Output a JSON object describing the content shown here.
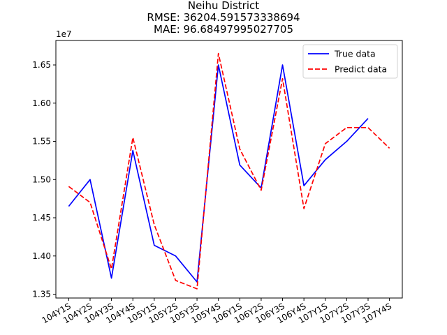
{
  "chart_data": {
    "type": "line",
    "title_lines": [
      "Neihu District",
      "RMSE: 36204.591573338694",
      "MAE: 96.68497995027705"
    ],
    "y_offset_label": "1e7",
    "categories": [
      "104Y1S",
      "104Y2S",
      "104Y3S",
      "104Y4S",
      "105Y1S",
      "105Y2S",
      "105Y3S",
      "105Y4S",
      "106Y1S",
      "106Y2S",
      "106Y3S",
      "106Y4S",
      "107Y1S",
      "107Y2S",
      "107Y3S",
      "107Y4S"
    ],
    "yticks": [
      1.35,
      1.4,
      1.45,
      1.5,
      1.55,
      1.6,
      1.65
    ],
    "ylim": [
      1.345,
      1.682
    ],
    "grid": false,
    "legend_position": "top-right",
    "series": [
      {
        "name": "True data",
        "color": "#0000ff",
        "dash": "solid",
        "values": [
          1.465,
          1.5,
          1.371,
          1.538,
          1.414,
          1.4,
          1.366,
          1.65,
          1.519,
          1.489,
          1.65,
          1.492,
          1.526,
          1.55,
          1.58,
          null
        ]
      },
      {
        "name": "Predict data",
        "color": "#ff0000",
        "dash": "dashed",
        "values": [
          1.491,
          1.47,
          1.383,
          1.555,
          1.441,
          1.368,
          1.357,
          1.665,
          1.54,
          1.486,
          1.632,
          1.462,
          1.547,
          1.568,
          1.568,
          1.541
        ]
      }
    ]
  }
}
